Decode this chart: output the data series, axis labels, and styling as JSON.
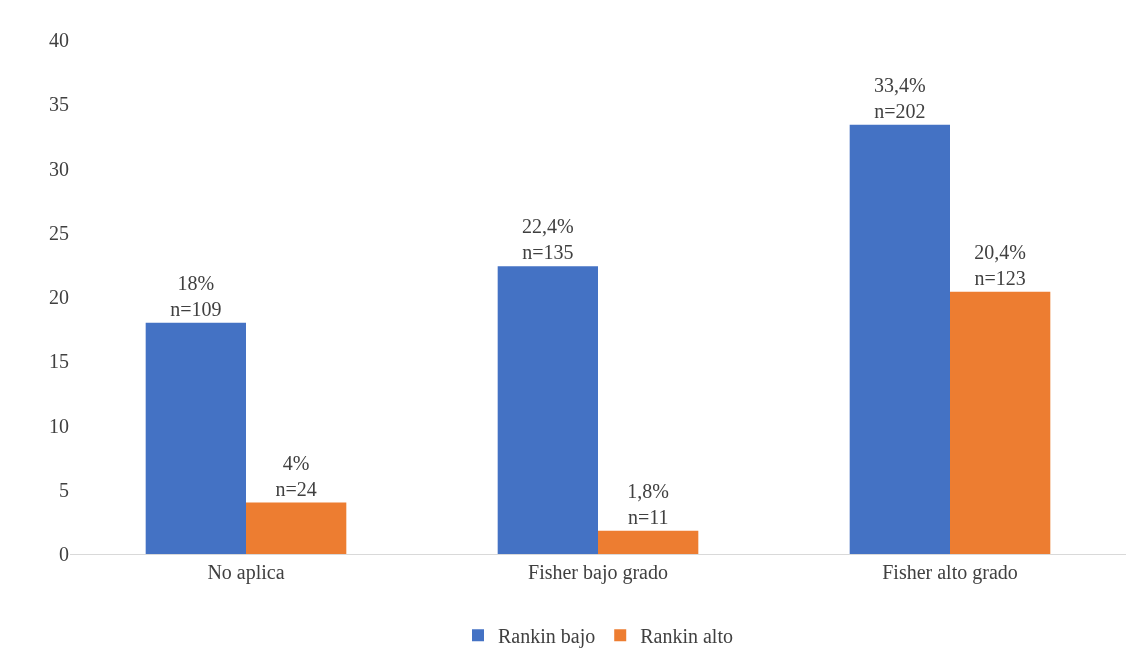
{
  "chart_data": {
    "type": "bar",
    "categories": [
      "No aplica",
      "Fisher bajo grado",
      "Fisher alto grado"
    ],
    "series": [
      {
        "name": "Rankin bajo",
        "color": "#4472c4",
        "values": [
          18,
          22.4,
          33.4
        ],
        "value_labels": [
          "18%\nn=109",
          "22,4%\nn=135",
          "33,4%\nn=202"
        ]
      },
      {
        "name": "Rankin alto",
        "color": "#ed7d31",
        "values": [
          4,
          1.8,
          20.4
        ],
        "value_labels": [
          "4%\nn=24",
          "1,8%\nn=11",
          "20,4%\nn=123"
        ]
      }
    ],
    "ylim": [
      0,
      40
    ],
    "yticks": [
      0,
      5,
      10,
      15,
      20,
      25,
      30,
      35,
      40
    ],
    "grid": false,
    "legend": "bottom"
  }
}
